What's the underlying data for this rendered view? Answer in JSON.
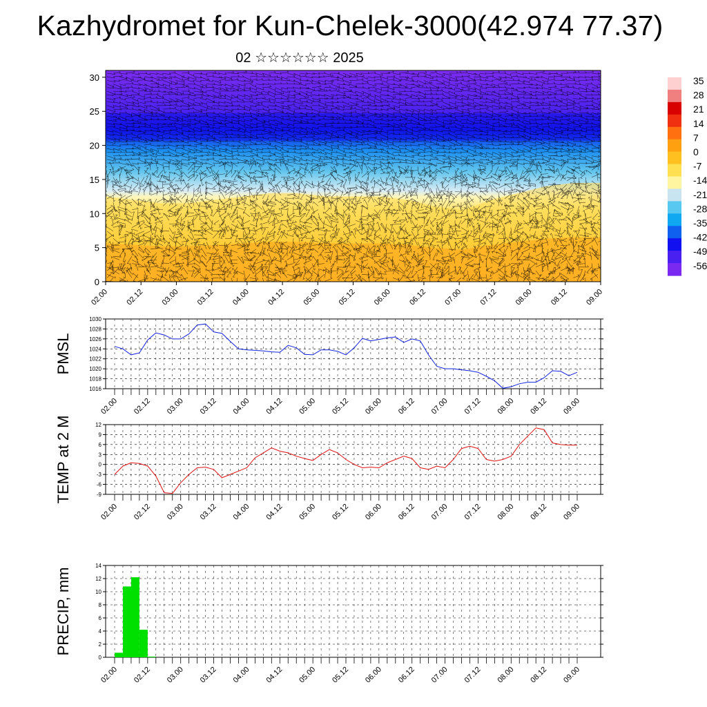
{
  "title": "Kazhydromet for Kun-Chelek-3000(42.974 77.37)",
  "subtitle": "02 ☆☆☆☆☆☆ 2025",
  "colors": {
    "pmsl_line": "#1020e0",
    "temp_line": "#e01010",
    "precip_bar": "#00e000",
    "palette": [
      "#7a2af0",
      "#4a20f0",
      "#1010f0",
      "#1060f0",
      "#10a8f0",
      "#58c8f0",
      "#c8e4f0",
      "#fff4a0",
      "#ffe050",
      "#ffc020",
      "#ffa010",
      "#ff7010",
      "#f03010",
      "#d80000",
      "#f08080",
      "#ffd0d0"
    ]
  },
  "chart_data": [
    {
      "id": "wind-section",
      "type": "heatmap",
      "title": "",
      "y_ticks": [
        "0",
        "5",
        "10",
        "15",
        "20",
        "25",
        "30"
      ],
      "ylim": [
        0,
        31
      ],
      "x_ticks": [
        "02.00",
        "02.12",
        "03.00",
        "03.12",
        "04.00",
        "04.12",
        "05.00",
        "05.12",
        "06.00",
        "06.12",
        "07.00",
        "07.12",
        "08.00",
        "08.12",
        "09.00"
      ],
      "freezing_level_profile": [
        12.5,
        12.0,
        11.5,
        11.5,
        12.0,
        12.5,
        13.0,
        13.0,
        12.5,
        12.5,
        12.5,
        12.0,
        11.0,
        10.5,
        12.0,
        13.0,
        14.0,
        14.5,
        14.5
      ],
      "tropopause_level": 22.5,
      "colorbar_labels": [
        "35",
        "28",
        "21",
        "14",
        "7",
        "0",
        "-7",
        "-14",
        "-21",
        "-28",
        "-35",
        "-42",
        "-49",
        "-56"
      ]
    },
    {
      "id": "pmsl",
      "type": "line",
      "ylabel": "PMSL",
      "ylim": [
        1016,
        1030
      ],
      "y_ticks": [
        "1030",
        "1028",
        "1026",
        "1024",
        "1022",
        "1020",
        "1018",
        "1016"
      ],
      "x_ticks": [
        "02.00",
        "02.12",
        "03.00",
        "03.12",
        "04.00",
        "04.12",
        "05.00",
        "05.12",
        "06.00",
        "06.12",
        "07.00",
        "07.12",
        "08.00",
        "08.12",
        "09.00"
      ],
      "series": [
        {
          "values": [
            1024.5,
            1024.0,
            1022.8,
            1023.2,
            1025.8,
            1027.2,
            1026.8,
            1026.0,
            1026.0,
            1027.0,
            1028.8,
            1029.0,
            1027.4,
            1027.1,
            1025.5,
            1024.0,
            1023.8,
            1023.7,
            1023.6,
            1023.4,
            1023.3,
            1024.7,
            1024.2,
            1022.9,
            1022.8,
            1023.8,
            1023.8,
            1023.5,
            1022.8,
            1024.2,
            1026.1,
            1025.6,
            1025.9,
            1026.2,
            1026.4,
            1025.3,
            1026.0,
            1025.6,
            1022.8,
            1020.5,
            1020.0,
            1020.0,
            1019.8,
            1019.6,
            1019.3,
            1018.5,
            1017.6,
            1016.1,
            1016.4,
            1017.0,
            1017.3,
            1017.3,
            1018.2,
            1019.6,
            1019.5,
            1018.6,
            1019.3
          ]
        }
      ]
    },
    {
      "id": "temp",
      "type": "line",
      "ylabel": "TEMP at 2 M",
      "ylim": [
        -9,
        12
      ],
      "y_ticks": [
        "12",
        "9",
        "6",
        "3",
        "0",
        "-3",
        "-6",
        "-9"
      ],
      "x_ticks": [
        "02.00",
        "02.12",
        "03.00",
        "03.12",
        "04.00",
        "04.12",
        "05.00",
        "05.12",
        "06.00",
        "06.12",
        "07.00",
        "07.12",
        "08.00",
        "08.12",
        "09.00"
      ],
      "series": [
        {
          "values": [
            -3.0,
            -0.5,
            0.5,
            0.3,
            -0.5,
            -3.5,
            -8.5,
            -8.7,
            -5.5,
            -3.0,
            -1.0,
            -0.8,
            -1.5,
            -4.0,
            -3.0,
            -2.0,
            -1.0,
            2.0,
            3.5,
            5.0,
            4.0,
            3.5,
            2.5,
            1.8,
            1.2,
            3.0,
            4.5,
            3.5,
            1.5,
            0.0,
            -1.0,
            -0.8,
            -1.0,
            0.5,
            1.5,
            2.5,
            1.8,
            -1.0,
            -1.5,
            -0.5,
            -1.0,
            1.5,
            4.8,
            5.5,
            4.8,
            1.5,
            1.0,
            1.5,
            2.5,
            6.0,
            8.5,
            11.0,
            10.5,
            6.5,
            6.0,
            5.8,
            5.8
          ]
        }
      ]
    },
    {
      "id": "precip",
      "type": "bar",
      "ylabel": "PRECIP, mm",
      "ylim": [
        0,
        14
      ],
      "y_ticks": [
        "14",
        "12",
        "10",
        "8",
        "6",
        "4",
        "2",
        "0"
      ],
      "x_ticks": [
        "02.00",
        "02.12",
        "03.00",
        "03.12",
        "04.00",
        "04.12",
        "05.00",
        "05.12",
        "06.00",
        "06.12",
        "07.00",
        "07.12",
        "08.00",
        "08.12",
        "09.00"
      ],
      "values": [
        0.7,
        10.8,
        12.2,
        4.2,
        0.1,
        0,
        0,
        0,
        0,
        0,
        0,
        0,
        0,
        0,
        0,
        0,
        0,
        0,
        0,
        0,
        0,
        0,
        0,
        0,
        0,
        0,
        0,
        0,
        0,
        0,
        0,
        0,
        0,
        0,
        0,
        0,
        0,
        0,
        0,
        0,
        0,
        0,
        0,
        0,
        0,
        0,
        0,
        0,
        0,
        0,
        0,
        0,
        0,
        0,
        0,
        0,
        0
      ]
    }
  ]
}
